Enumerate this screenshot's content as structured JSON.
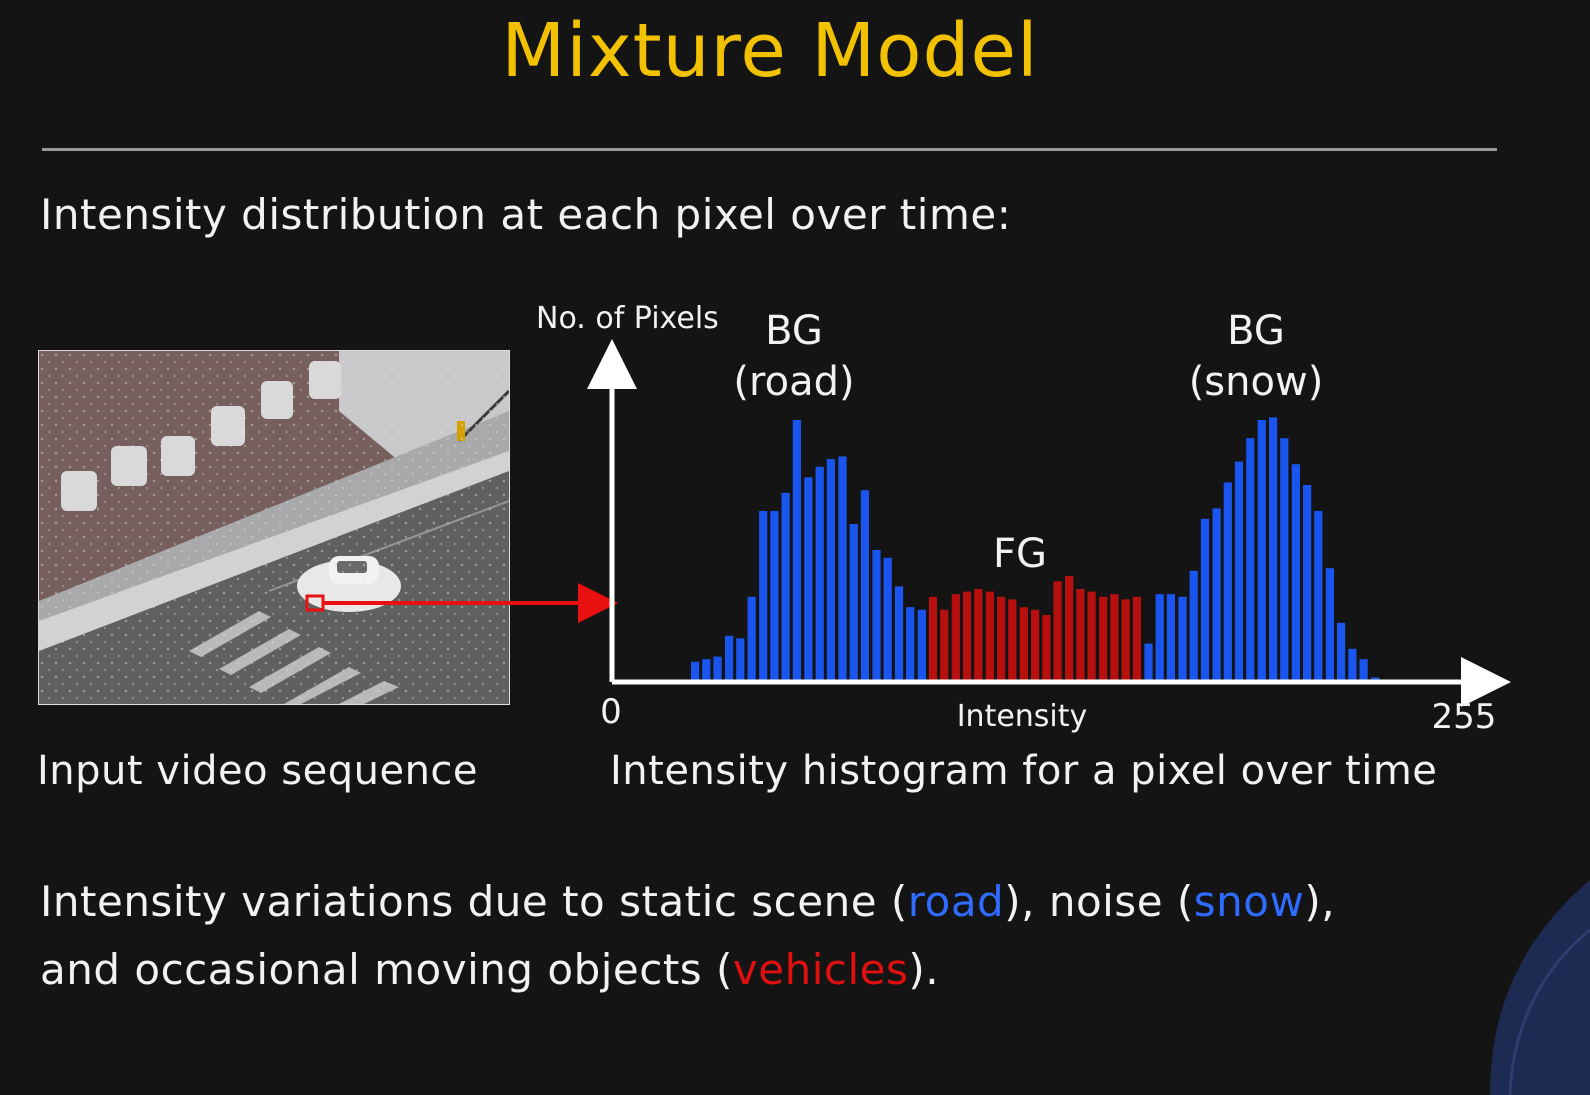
{
  "slide": {
    "title": "Mixture Model",
    "subtitle": "Intensity distribution at each pixel over time:",
    "left_caption": "Input video sequence",
    "right_caption": "Intensity histogram for a pixel over time",
    "bottom_text": {
      "line1_a": "Intensity variations due to static scene (",
      "line1_road": "road",
      "line1_b": "), noise (",
      "line1_snow": "snow",
      "line1_c": "),",
      "line2_a": "and occasional moving objects (",
      "line2_vehicles": "vehicles",
      "line2_b": ")."
    }
  },
  "colors": {
    "title": "#f2c200",
    "background_bar": "#1a55f0",
    "foreground_bar": "#b8100e",
    "pointer": "#e81010"
  },
  "chart_data": {
    "type": "bar",
    "ylabel": "No. of Pixels",
    "xlabel": "Intensity",
    "xlim": [
      0,
      255
    ],
    "x_tick_labels": [
      "0",
      "255"
    ],
    "y_range": [
      0,
      100
    ],
    "annotations": [
      {
        "id": "bg_road_1",
        "text": "BG"
      },
      {
        "id": "bg_road_2",
        "text": "(road)"
      },
      {
        "id": "fg",
        "text": "FG"
      },
      {
        "id": "bg_snow_1",
        "text": "BG"
      },
      {
        "id": "bg_snow_2",
        "text": "(snow)"
      }
    ],
    "bin_width": 3.33,
    "bins": [
      {
        "x": 24.4,
        "value": 7,
        "class": "BG"
      },
      {
        "x": 27.7,
        "value": 8,
        "class": "BG"
      },
      {
        "x": 31.0,
        "value": 9,
        "class": "BG"
      },
      {
        "x": 34.4,
        "value": 17,
        "class": "BG"
      },
      {
        "x": 37.7,
        "value": 16,
        "class": "BG"
      },
      {
        "x": 41.0,
        "value": 32,
        "class": "BG"
      },
      {
        "x": 44.4,
        "value": 65,
        "class": "BG"
      },
      {
        "x": 47.7,
        "value": 65,
        "class": "BG"
      },
      {
        "x": 51.0,
        "value": 72,
        "class": "BG"
      },
      {
        "x": 54.3,
        "value": 100,
        "class": "BG"
      },
      {
        "x": 57.7,
        "value": 78,
        "class": "BG"
      },
      {
        "x": 61.0,
        "value": 82,
        "class": "BG"
      },
      {
        "x": 64.3,
        "value": 85,
        "class": "BG"
      },
      {
        "x": 67.7,
        "value": 86,
        "class": "BG"
      },
      {
        "x": 71.0,
        "value": 60,
        "class": "BG"
      },
      {
        "x": 74.3,
        "value": 73,
        "class": "BG"
      },
      {
        "x": 77.7,
        "value": 50,
        "class": "BG"
      },
      {
        "x": 81.0,
        "value": 47,
        "class": "BG"
      },
      {
        "x": 84.3,
        "value": 36,
        "class": "BG"
      },
      {
        "x": 87.6,
        "value": 28,
        "class": "BG"
      },
      {
        "x": 91.0,
        "value": 27,
        "class": "BG"
      },
      {
        "x": 94.3,
        "value": 32,
        "class": "FG"
      },
      {
        "x": 97.6,
        "value": 27,
        "class": "FG"
      },
      {
        "x": 101.0,
        "value": 33,
        "class": "FG"
      },
      {
        "x": 104.3,
        "value": 34,
        "class": "FG"
      },
      {
        "x": 107.6,
        "value": 35,
        "class": "FG"
      },
      {
        "x": 111.0,
        "value": 34,
        "class": "FG"
      },
      {
        "x": 114.3,
        "value": 32,
        "class": "FG"
      },
      {
        "x": 117.6,
        "value": 31,
        "class": "FG"
      },
      {
        "x": 121.0,
        "value": 28,
        "class": "FG"
      },
      {
        "x": 124.3,
        "value": 27,
        "class": "FG"
      },
      {
        "x": 127.6,
        "value": 25,
        "class": "FG"
      },
      {
        "x": 130.9,
        "value": 38,
        "class": "FG"
      },
      {
        "x": 134.3,
        "value": 40,
        "class": "FG"
      },
      {
        "x": 137.6,
        "value": 35,
        "class": "FG"
      },
      {
        "x": 140.9,
        "value": 34,
        "class": "FG"
      },
      {
        "x": 144.3,
        "value": 32,
        "class": "FG"
      },
      {
        "x": 147.6,
        "value": 33,
        "class": "FG"
      },
      {
        "x": 150.9,
        "value": 31,
        "class": "FG"
      },
      {
        "x": 154.2,
        "value": 32,
        "class": "FG"
      },
      {
        "x": 157.6,
        "value": 14,
        "class": "BG"
      },
      {
        "x": 160.9,
        "value": 33,
        "class": "BG"
      },
      {
        "x": 164.2,
        "value": 33,
        "class": "BG"
      },
      {
        "x": 167.6,
        "value": 32,
        "class": "BG"
      },
      {
        "x": 170.9,
        "value": 42,
        "class": "BG"
      },
      {
        "x": 174.2,
        "value": 62,
        "class": "BG"
      },
      {
        "x": 177.6,
        "value": 66,
        "class": "BG"
      },
      {
        "x": 180.9,
        "value": 76,
        "class": "BG"
      },
      {
        "x": 184.2,
        "value": 84,
        "class": "BG"
      },
      {
        "x": 187.5,
        "value": 93,
        "class": "BG"
      },
      {
        "x": 190.9,
        "value": 100,
        "class": "BG"
      },
      {
        "x": 194.2,
        "value": 101,
        "class": "BG"
      },
      {
        "x": 197.5,
        "value": 93,
        "class": "BG"
      },
      {
        "x": 200.9,
        "value": 83,
        "class": "BG"
      },
      {
        "x": 204.2,
        "value": 75,
        "class": "BG"
      },
      {
        "x": 207.5,
        "value": 65,
        "class": "BG"
      },
      {
        "x": 210.9,
        "value": 43,
        "class": "BG"
      },
      {
        "x": 214.2,
        "value": 22,
        "class": "BG"
      },
      {
        "x": 217.5,
        "value": 12,
        "class": "BG"
      },
      {
        "x": 220.8,
        "value": 8,
        "class": "BG"
      },
      {
        "x": 224.2,
        "value": 1,
        "class": "BG"
      }
    ]
  }
}
